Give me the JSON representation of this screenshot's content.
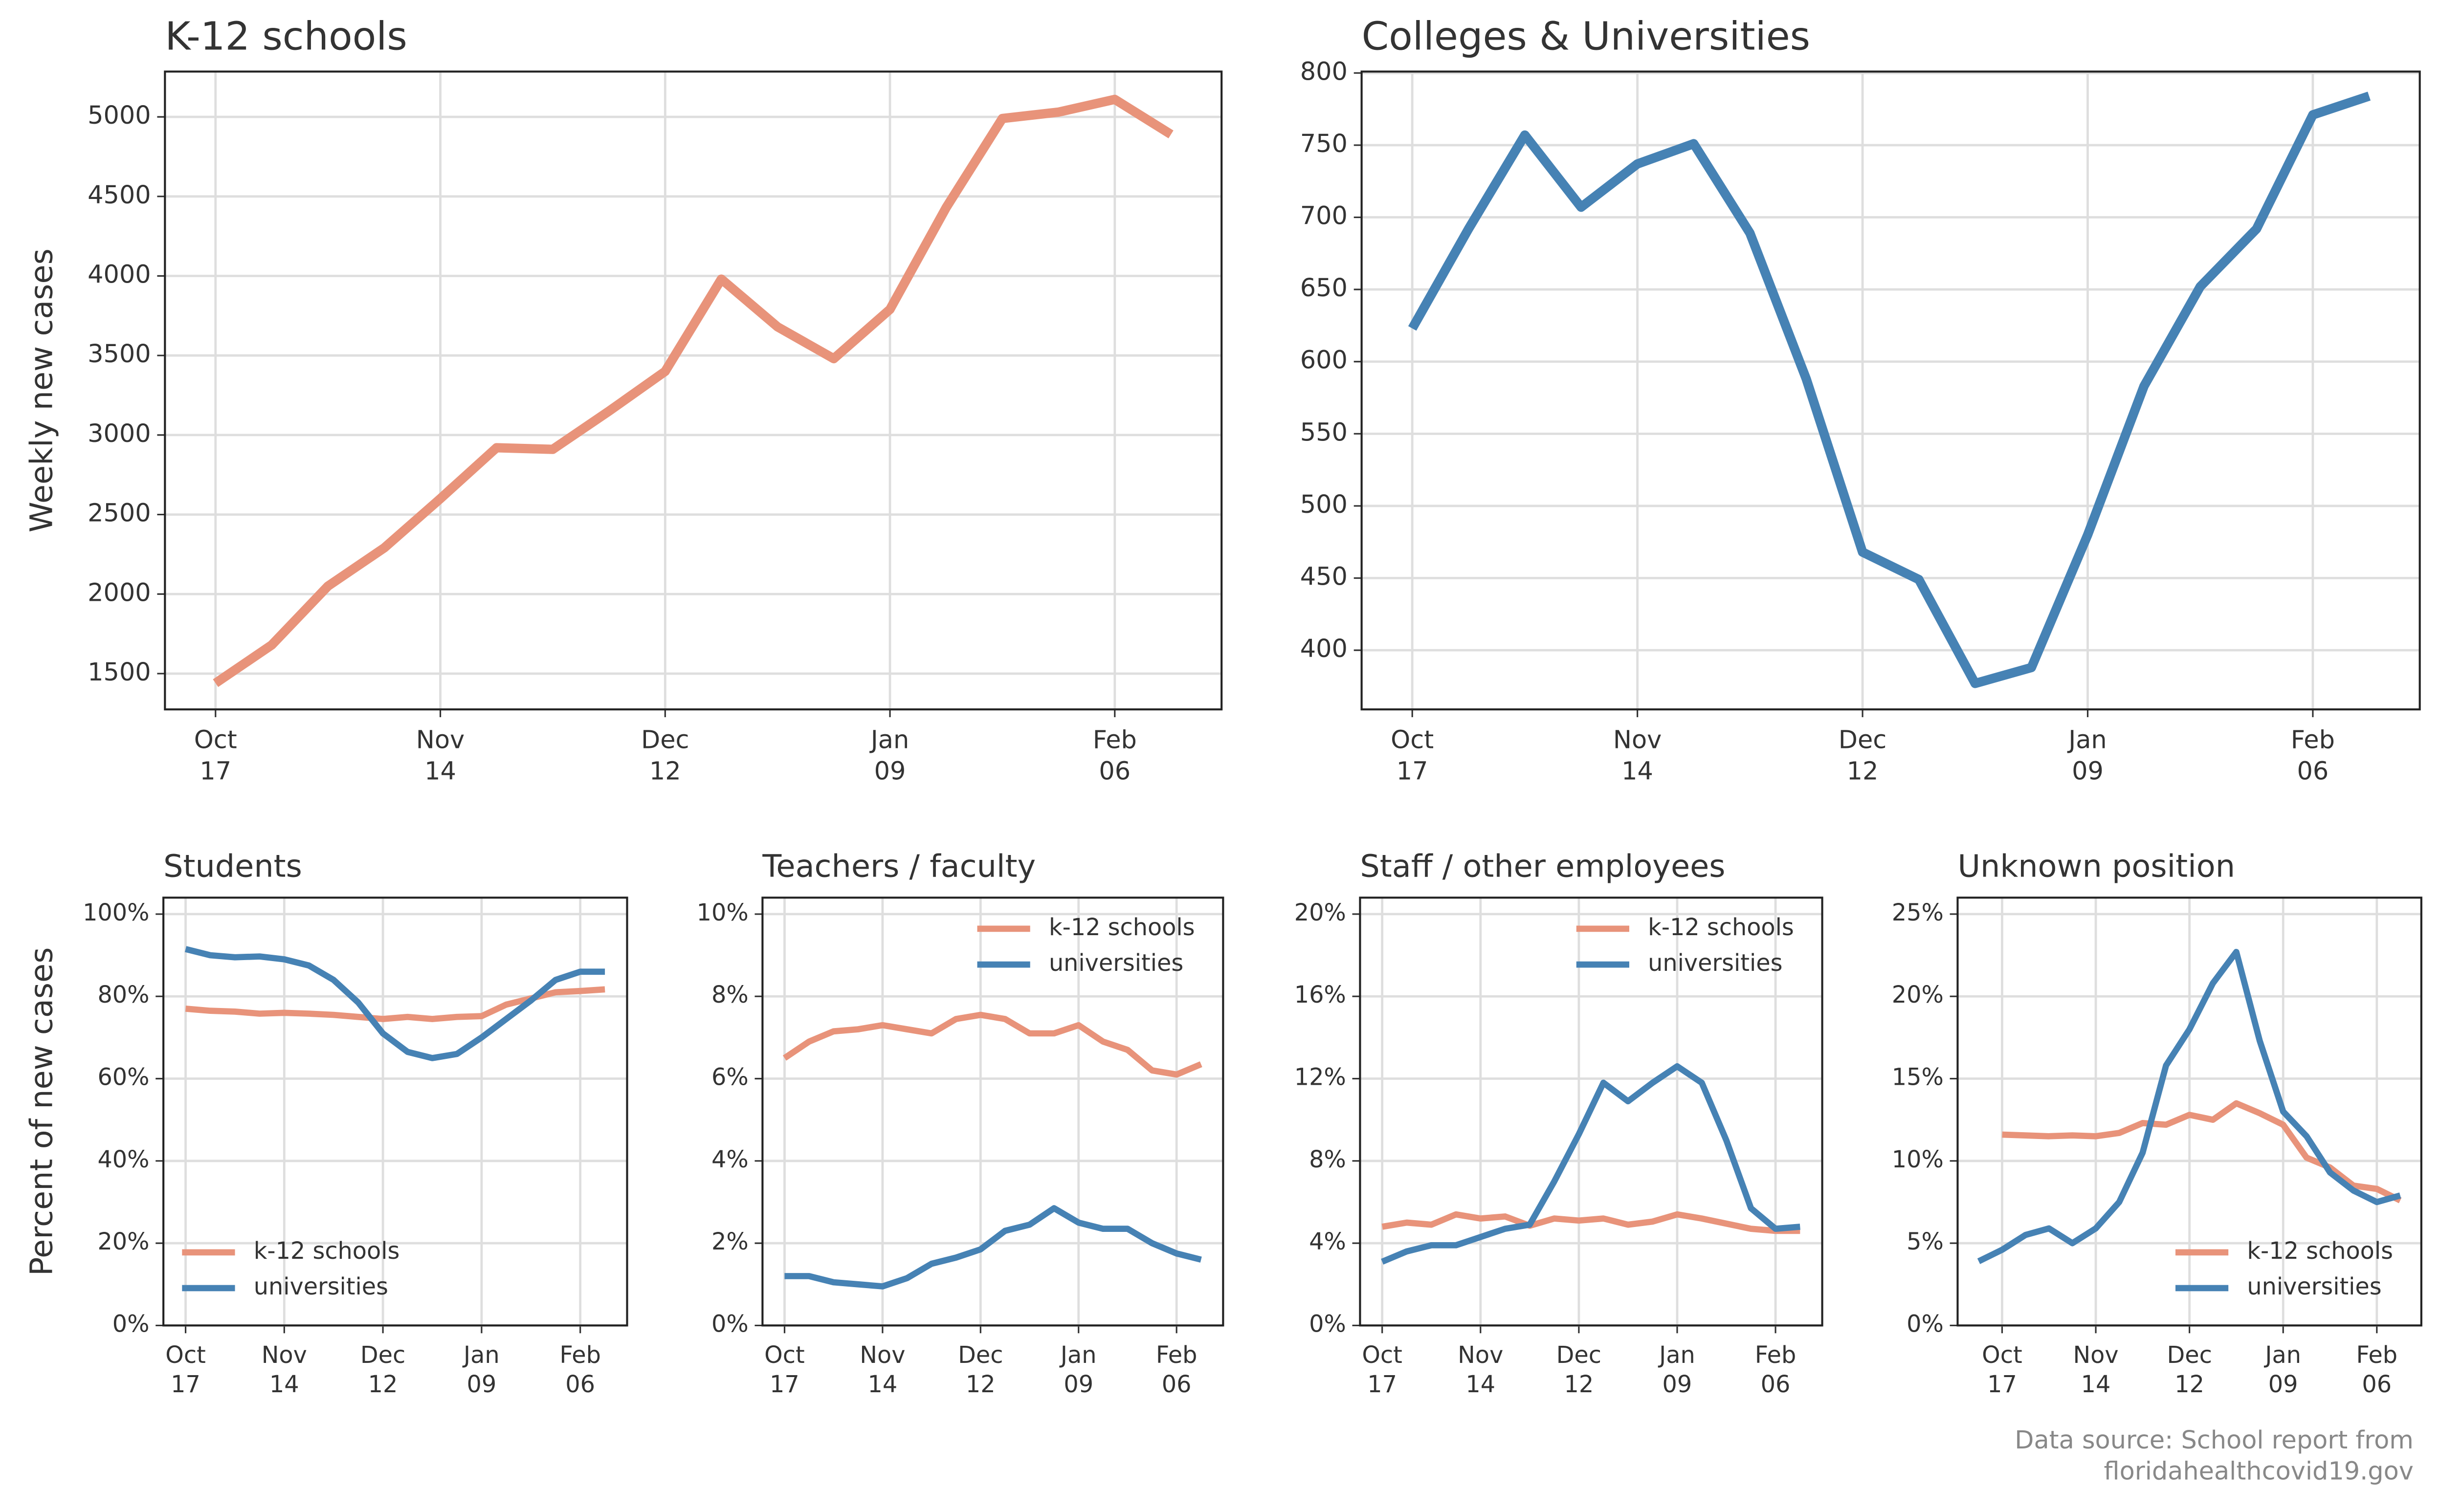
{
  "chart_data": [
    {
      "type": "line",
      "title": "K-12 schools",
      "ylabel": "Weekly new cases",
      "categories": [
        "Oct\n17",
        null,
        null,
        null,
        "Nov\n14",
        null,
        null,
        null,
        "Dec\n12",
        null,
        null,
        null,
        "Jan\n09",
        null,
        null,
        null,
        "Feb\n06",
        null
      ],
      "series": [
        {
          "color": "#e8937a",
          "values": [
            1440,
            1680,
            2050,
            2290,
            2600,
            2920,
            2910,
            3150,
            3400,
            3980,
            3680,
            3480,
            3790,
            4430,
            4990,
            5030,
            5110,
            4890
          ]
        }
      ],
      "ylim": [
        1275,
        5285
      ],
      "yticks": [
        1500,
        2000,
        2500,
        3000,
        3500,
        4000,
        4500,
        5000
      ],
      "grid": true
    },
    {
      "type": "line",
      "title": "Colleges & Universities",
      "categories": [
        "Oct\n17",
        null,
        null,
        null,
        "Nov\n14",
        null,
        null,
        null,
        "Dec\n12",
        null,
        null,
        null,
        "Jan\n09",
        null,
        null,
        null,
        "Feb\n06",
        null
      ],
      "series": [
        {
          "color": "#4682b4",
          "values": [
            623,
            692,
            757,
            707,
            737,
            751,
            689,
            588,
            468,
            449,
            377,
            388,
            480,
            583,
            652,
            692,
            771,
            784
          ]
        }
      ],
      "ylim": [
        359,
        801
      ],
      "yticks": [
        400,
        450,
        500,
        550,
        600,
        650,
        700,
        750,
        800
      ],
      "grid": true
    },
    {
      "type": "line",
      "title": "Students",
      "ylabel": "Percent of new cases",
      "legend": "lower left",
      "categories": [
        "Oct\n17",
        null,
        null,
        null,
        "Nov\n14",
        null,
        null,
        null,
        "Dec\n12",
        null,
        null,
        null,
        "Jan\n09",
        null,
        null,
        null,
        "Feb\n06",
        null
      ],
      "series": [
        {
          "name": "k-12 schools",
          "color": "#e8937a",
          "values": [
            77,
            76.5,
            76.3,
            75.8,
            76,
            75.8,
            75.5,
            75,
            74.5,
            75,
            74.5,
            75,
            75.2,
            78,
            79.5,
            81,
            81.3,
            81.7
          ]
        },
        {
          "name": "universities",
          "color": "#4682b4",
          "values": [
            91.5,
            90,
            89.5,
            89.7,
            89,
            87.5,
            84,
            78.5,
            71,
            66.5,
            65,
            66,
            70,
            74.5,
            79,
            84,
            86,
            86
          ]
        }
      ],
      "ylim": [
        0,
        104
      ],
      "yticks": [
        {
          "value": 0,
          "label": "0%"
        },
        {
          "value": 20,
          "label": "20%"
        },
        {
          "value": 40,
          "label": "40%"
        },
        {
          "value": 60,
          "label": "60%"
        },
        {
          "value": 80,
          "label": "80%"
        },
        {
          "value": 100,
          "label": "100%"
        }
      ],
      "grid": true
    },
    {
      "type": "line",
      "title": "Teachers / faculty",
      "legend": "upper right",
      "categories": [
        "Oct\n17",
        null,
        null,
        null,
        "Nov\n14",
        null,
        null,
        null,
        "Dec\n12",
        null,
        null,
        null,
        "Jan\n09",
        null,
        null,
        null,
        "Feb\n06",
        null
      ],
      "series": [
        {
          "name": "k-12 schools",
          "color": "#e8937a",
          "values": [
            6.5,
            6.9,
            7.15,
            7.2,
            7.3,
            7.2,
            7.1,
            7.45,
            7.55,
            7.45,
            7.1,
            7.1,
            7.3,
            6.9,
            6.7,
            6.2,
            6.1,
            6.35
          ]
        },
        {
          "name": "universities",
          "color": "#4682b4",
          "values": [
            1.2,
            1.2,
            1.05,
            1.0,
            0.95,
            1.15,
            1.5,
            1.65,
            1.85,
            2.3,
            2.45,
            2.85,
            2.5,
            2.35,
            2.35,
            2.0,
            1.75,
            1.6
          ]
        }
      ],
      "ylim": [
        0,
        10.4
      ],
      "yticks": [
        {
          "value": 0,
          "label": "0%"
        },
        {
          "value": 2,
          "label": "2%"
        },
        {
          "value": 4,
          "label": "4%"
        },
        {
          "value": 6,
          "label": "6%"
        },
        {
          "value": 8,
          "label": "8%"
        },
        {
          "value": 10,
          "label": "10%"
        }
      ],
      "grid": true
    },
    {
      "type": "line",
      "title": "Staff / other employees",
      "legend": "upper right",
      "categories": [
        "Oct\n17",
        null,
        null,
        null,
        "Nov\n14",
        null,
        null,
        null,
        "Dec\n12",
        null,
        null,
        null,
        "Jan\n09",
        null,
        null,
        null,
        "Feb\n06",
        null
      ],
      "series": [
        {
          "name": "k-12 schools",
          "color": "#e8937a",
          "values": [
            4.8,
            5.0,
            4.9,
            5.4,
            5.2,
            5.3,
            4.85,
            5.2,
            5.1,
            5.2,
            4.9,
            5.05,
            5.4,
            5.2,
            4.95,
            4.7,
            4.6,
            4.6
          ]
        },
        {
          "name": "universities",
          "color": "#4682b4",
          "values": [
            3.1,
            3.6,
            3.9,
            3.9,
            4.3,
            4.7,
            4.9,
            7.0,
            9.3,
            11.8,
            10.9,
            11.8,
            12.6,
            11.8,
            9.0,
            5.7,
            4.7,
            4.8
          ]
        }
      ],
      "ylim": [
        0,
        20.8
      ],
      "yticks": [
        {
          "value": 0,
          "label": "0%"
        },
        {
          "value": 4,
          "label": "4%"
        },
        {
          "value": 8,
          "label": "8%"
        },
        {
          "value": 12,
          "label": "12%"
        },
        {
          "value": 16,
          "label": "16%"
        },
        {
          "value": 20,
          "label": "20%"
        }
      ],
      "grid": true
    },
    {
      "type": "line",
      "title": "Unknown position",
      "legend": "lower right",
      "categories": [
        null,
        "Oct\n17",
        null,
        null,
        null,
        "Nov\n14",
        null,
        null,
        null,
        "Dec\n12",
        null,
        null,
        null,
        "Jan\n09",
        null,
        null,
        null,
        "Feb\n06",
        null
      ],
      "series": [
        {
          "name": "k-12 schools",
          "color": "#e8937a",
          "values": [
            null,
            11.6,
            11.55,
            11.5,
            11.55,
            11.5,
            11.7,
            12.3,
            12.2,
            12.8,
            12.5,
            13.5,
            12.9,
            12.2,
            10.2,
            9.6,
            8.5,
            8.3,
            7.6
          ]
        },
        {
          "name": "universities",
          "color": "#4682b4",
          "values": [
            3.9,
            4.6,
            5.5,
            5.9,
            5.0,
            5.9,
            7.5,
            10.5,
            15.8,
            18.0,
            20.8,
            22.7,
            17.3,
            13.0,
            11.5,
            9.3,
            8.2,
            7.5,
            7.9
          ]
        }
      ],
      "ylim": [
        0,
        26
      ],
      "yticks": [
        {
          "value": 0,
          "label": "0%"
        },
        {
          "value": 5,
          "label": "5%"
        },
        {
          "value": 10,
          "label": "10%"
        },
        {
          "value": 15,
          "label": "15%"
        },
        {
          "value": 20,
          "label": "20%"
        },
        {
          "value": 25,
          "label": "25%"
        }
      ],
      "grid": true
    }
  ],
  "note": "Data source: School report from\nfloridahealthcovid19.gov"
}
